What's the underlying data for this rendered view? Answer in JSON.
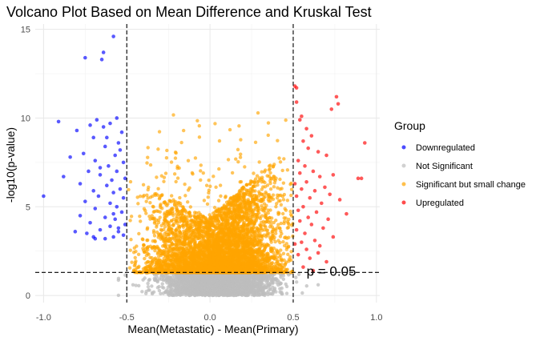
{
  "chart_data": {
    "type": "scatter",
    "title": "Volcano Plot Based on Mean Difference and Kruskal Test",
    "xlabel": "Mean(Metastatic) - Mean(Primary)",
    "ylabel": "-log10(p-value)",
    "xlim": [
      -1.05,
      1.02
    ],
    "ylim": [
      -0.4,
      15.3
    ],
    "xticks": [
      -1.0,
      -0.5,
      0.0,
      0.5,
      1.0
    ],
    "xtick_labels": [
      "-1.0",
      "-0.5",
      "0.0",
      "0.5",
      "1.0"
    ],
    "yticks": [
      0,
      5,
      10,
      15
    ],
    "ytick_labels": [
      "0",
      "5",
      "10",
      "15"
    ],
    "grid": true,
    "legend": {
      "title": "Group",
      "position": "right",
      "entries": [
        {
          "label": "Downregulated",
          "color": "#0000ff"
        },
        {
          "label": "Not Significant",
          "color": "#bebebe"
        },
        {
          "label": "Significant but small change",
          "color": "#ffa500"
        },
        {
          "label": "Upregulated",
          "color": "#ff0000"
        }
      ]
    },
    "reference_lines": [
      {
        "orientation": "vertical",
        "value": -0.5
      },
      {
        "orientation": "vertical",
        "value": 0.5
      },
      {
        "orientation": "horizontal",
        "value": 1.3
      }
    ],
    "annotations": [
      {
        "text": "p = 0.05",
        "x": 0.58,
        "y": 1.3
      }
    ],
    "series": [
      {
        "name": "Downregulated",
        "color": "#0000ff",
        "points": [
          [
            -0.58,
            14.6
          ],
          [
            -0.64,
            13.7
          ],
          [
            -0.75,
            13.4
          ],
          [
            -0.65,
            13.3
          ],
          [
            -0.91,
            9.8
          ],
          [
            -0.68,
            9.9
          ],
          [
            -0.56,
            10.0
          ],
          [
            -0.72,
            9.6
          ],
          [
            -0.64,
            9.5
          ],
          [
            -0.8,
            9.3
          ],
          [
            -0.6,
            9.7
          ],
          [
            -0.53,
            9.2
          ],
          [
            -0.7,
            8.9
          ],
          [
            -0.55,
            8.6
          ],
          [
            -0.63,
            8.4
          ],
          [
            -0.76,
            8.0
          ],
          [
            -0.57,
            7.9
          ],
          [
            -0.69,
            7.6
          ],
          [
            -0.52,
            7.5
          ],
          [
            -0.61,
            7.3
          ],
          [
            -0.84,
            7.8
          ],
          [
            -0.56,
            7.0
          ],
          [
            -0.73,
            7.0
          ],
          [
            -0.66,
            6.8
          ],
          [
            -0.88,
            6.7
          ],
          [
            -0.51,
            6.6
          ],
          [
            -0.59,
            6.5
          ],
          [
            -0.78,
            6.3
          ],
          [
            -0.62,
            6.2
          ],
          [
            -0.54,
            6.0
          ],
          [
            -0.7,
            5.9
          ],
          [
            -0.58,
            5.8
          ],
          [
            -1.0,
            5.6
          ],
          [
            -0.67,
            5.6
          ],
          [
            -0.52,
            5.5
          ],
          [
            -0.75,
            5.3
          ],
          [
            -0.6,
            5.2
          ],
          [
            -0.56,
            5.0
          ],
          [
            -0.69,
            4.9
          ],
          [
            -0.53,
            4.7
          ],
          [
            -0.78,
            4.5
          ],
          [
            -0.63,
            4.4
          ],
          [
            -0.57,
            4.3
          ],
          [
            -0.72,
            4.1
          ],
          [
            -0.51,
            4.0
          ],
          [
            -0.6,
            3.9
          ],
          [
            -0.66,
            3.7
          ],
          [
            -0.55,
            3.6
          ],
          [
            -0.74,
            3.5
          ],
          [
            -0.7,
            3.3
          ],
          [
            -0.58,
            3.3
          ],
          [
            -0.52,
            3.4
          ],
          [
            -0.63,
            3.2
          ],
          [
            -0.69,
            3.2
          ],
          [
            -0.55,
            3.8
          ],
          [
            -0.81,
            3.6
          ],
          [
            -0.62,
            8.9
          ],
          [
            -0.54,
            8.2
          ],
          [
            -0.66,
            7.2
          ],
          [
            -0.58,
            4.6
          ]
        ]
      },
      {
        "name": "Upregulated",
        "color": "#ff0000",
        "points": [
          [
            0.51,
            11.8
          ],
          [
            0.52,
            11.7
          ],
          [
            0.76,
            11.2
          ],
          [
            0.77,
            10.8
          ],
          [
            0.73,
            10.5
          ],
          [
            0.52,
            10.9
          ],
          [
            0.55,
            10.1
          ],
          [
            0.54,
            9.9
          ],
          [
            0.58,
            9.4
          ],
          [
            0.61,
            9.0
          ],
          [
            0.93,
            8.6
          ],
          [
            0.56,
            8.7
          ],
          [
            0.65,
            8.1
          ],
          [
            0.59,
            8.3
          ],
          [
            0.7,
            7.9
          ],
          [
            0.53,
            7.6
          ],
          [
            0.57,
            7.3
          ],
          [
            0.62,
            7.0
          ],
          [
            0.54,
            6.9
          ],
          [
            0.74,
            6.8
          ],
          [
            0.66,
            6.7
          ],
          [
            0.89,
            6.6
          ],
          [
            0.91,
            6.6
          ],
          [
            0.58,
            6.4
          ],
          [
            0.51,
            6.3
          ],
          [
            0.69,
            6.1
          ],
          [
            0.55,
            6.0
          ],
          [
            0.63,
            5.9
          ],
          [
            0.72,
            5.7
          ],
          [
            0.52,
            5.6
          ],
          [
            0.6,
            5.5
          ],
          [
            0.78,
            5.4
          ],
          [
            0.67,
            5.2
          ],
          [
            0.56,
            5.0
          ],
          [
            0.53,
            4.8
          ],
          [
            0.64,
            4.7
          ],
          [
            0.59,
            4.4
          ],
          [
            0.82,
            4.6
          ],
          [
            0.71,
            4.3
          ],
          [
            0.54,
            4.2
          ],
          [
            0.61,
            4.0
          ],
          [
            0.68,
            3.8
          ],
          [
            0.52,
            3.7
          ],
          [
            0.57,
            3.5
          ],
          [
            0.74,
            3.3
          ],
          [
            0.63,
            3.1
          ],
          [
            0.55,
            3.0
          ],
          [
            0.66,
            2.8
          ],
          [
            0.58,
            2.6
          ],
          [
            0.53,
            2.3
          ],
          [
            0.6,
            2.1
          ],
          [
            0.7,
            1.9
          ],
          [
            0.56,
            1.6
          ],
          [
            0.62,
            1.4
          ],
          [
            0.51,
            2.9
          ],
          [
            0.65,
            2.4
          ]
        ]
      }
    ]
  }
}
